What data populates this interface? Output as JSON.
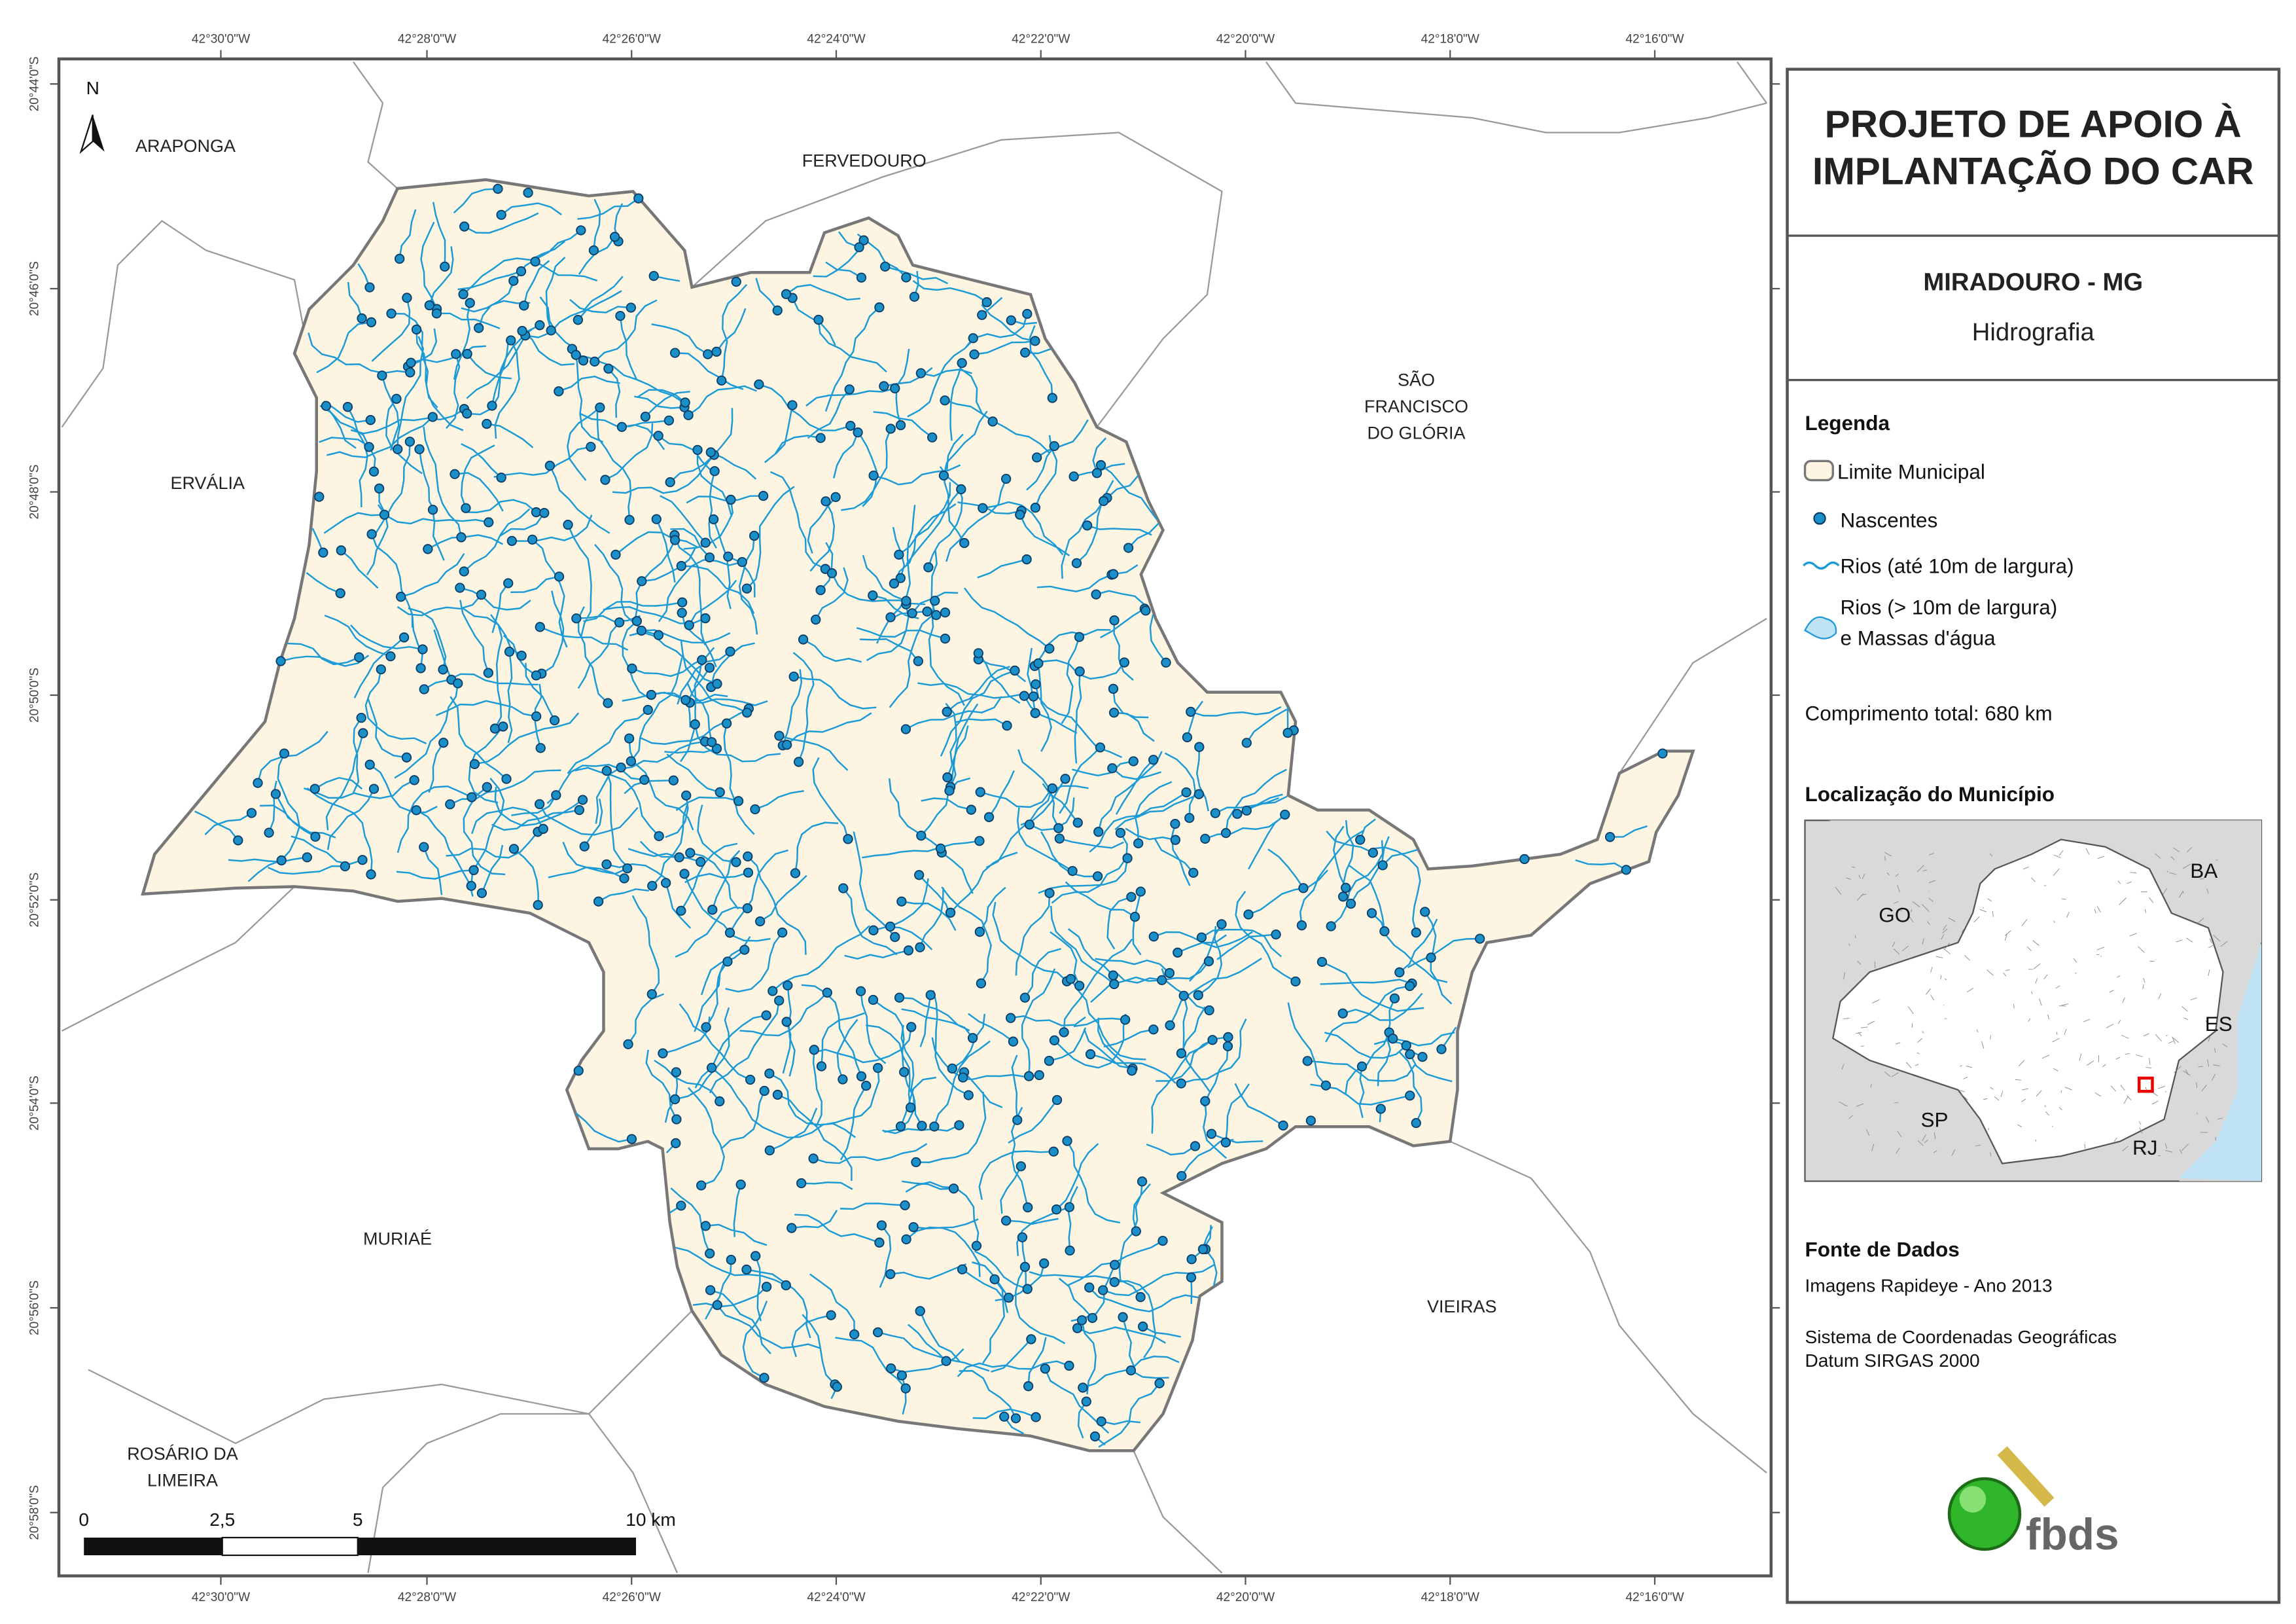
{
  "map": {
    "top_longitude_labels": [
      "42°30'0\"W",
      "42°28'0\"W",
      "42°26'0\"W",
      "42°24'0\"W",
      "42°22'0\"W",
      "42°20'0\"W",
      "42°18'0\"W",
      "42°16'0\"W"
    ],
    "bottom_longitude_labels": [
      "42°30'0\"W",
      "42°28'0\"W",
      "42°26'0\"W",
      "42°24'0\"W",
      "42°22'0\"W",
      "42°20'0\"W",
      "42°18'0\"W",
      "42°16'0\"W"
    ],
    "latitude_labels": [
      "20°44'0\"S",
      "20°46'0\"S",
      "20°48'0\"S",
      "20°50'0\"S",
      "20°52'0\"S",
      "20°54'0\"S",
      "20°56'0\"S",
      "20°58'0\"S"
    ],
    "north_arrow": "N",
    "place_labels": [
      [
        "ARAPONGA"
      ],
      [
        "FERVEDOURO"
      ],
      [
        "SÃO",
        "FRANCISCO",
        "DO GLÓRIA"
      ],
      [
        "ERVÁLIA"
      ],
      [
        "MURIAÉ"
      ],
      [
        "VIEIRAS"
      ],
      [
        "ROSÁRIO DA",
        "LIMEIRA"
      ]
    ],
    "scale_bar": [
      "0",
      "2,5",
      "5",
      "10 km"
    ]
  },
  "panel": {
    "title": [
      "PROJETO DE APOIO À",
      "IMPLANTAÇÃO DO CAR"
    ],
    "municipality": "MIRADOURO - MG",
    "theme": "Hidrografia",
    "legend": {
      "title": "Legenda",
      "items": [
        [
          "Limite Municipal"
        ],
        [
          "Nascentes"
        ],
        [
          "Rios (até 10m de largura)"
        ],
        [
          "Rios (> 10m de largura)",
          "e Massas d'água"
        ]
      ]
    },
    "total_length": "Comprimento total: 680 km",
    "location_title": "Localização do Município",
    "inset_labels": [
      "BA",
      "GO",
      "ES",
      "SP",
      "RJ"
    ],
    "source_title": "Fonte de Dados",
    "source_lines": [
      "Imagens Rapideye - Ano 2013",
      "Sistema de Coordenadas Geográficas",
      "Datum SIRGAS 2000"
    ],
    "logo_text": "fbds"
  }
}
